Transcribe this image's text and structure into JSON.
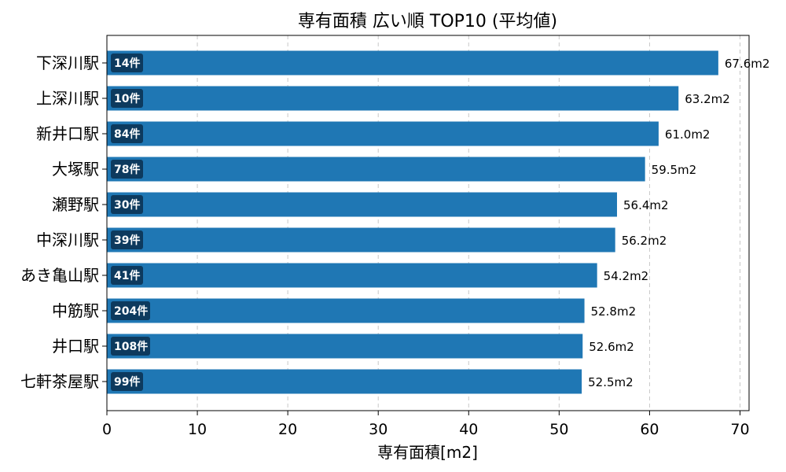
{
  "chart_data": {
    "type": "bar",
    "orientation": "horizontal",
    "title": "専有面積 広い順 TOP10 (平均値)",
    "xlabel": "専有面積[m2]",
    "ylabel": "",
    "xlim": [
      0,
      71
    ],
    "xticks": [
      0,
      10,
      20,
      30,
      40,
      50,
      60,
      70
    ],
    "grid": "x-dashed",
    "bar_color": "#1f77b4",
    "badge_color": "#0d3a5e",
    "categories": [
      "下深川駅",
      "上深川駅",
      "新井口駅",
      "大塚駅",
      "瀬野駅",
      "中深川駅",
      "あき亀山駅",
      "中筋駅",
      "井口駅",
      "七軒茶屋駅"
    ],
    "values": [
      67.6,
      63.2,
      61.0,
      59.5,
      56.4,
      56.2,
      54.2,
      52.8,
      52.6,
      52.5
    ],
    "value_labels": [
      "67.6m2",
      "63.2m2",
      "61.0m2",
      "59.5m2",
      "56.4m2",
      "56.2m2",
      "54.2m2",
      "52.8m2",
      "52.6m2",
      "52.5m2"
    ],
    "counts": [
      "14件",
      "10件",
      "84件",
      "78件",
      "30件",
      "39件",
      "41件",
      "204件",
      "108件",
      "99件"
    ]
  }
}
